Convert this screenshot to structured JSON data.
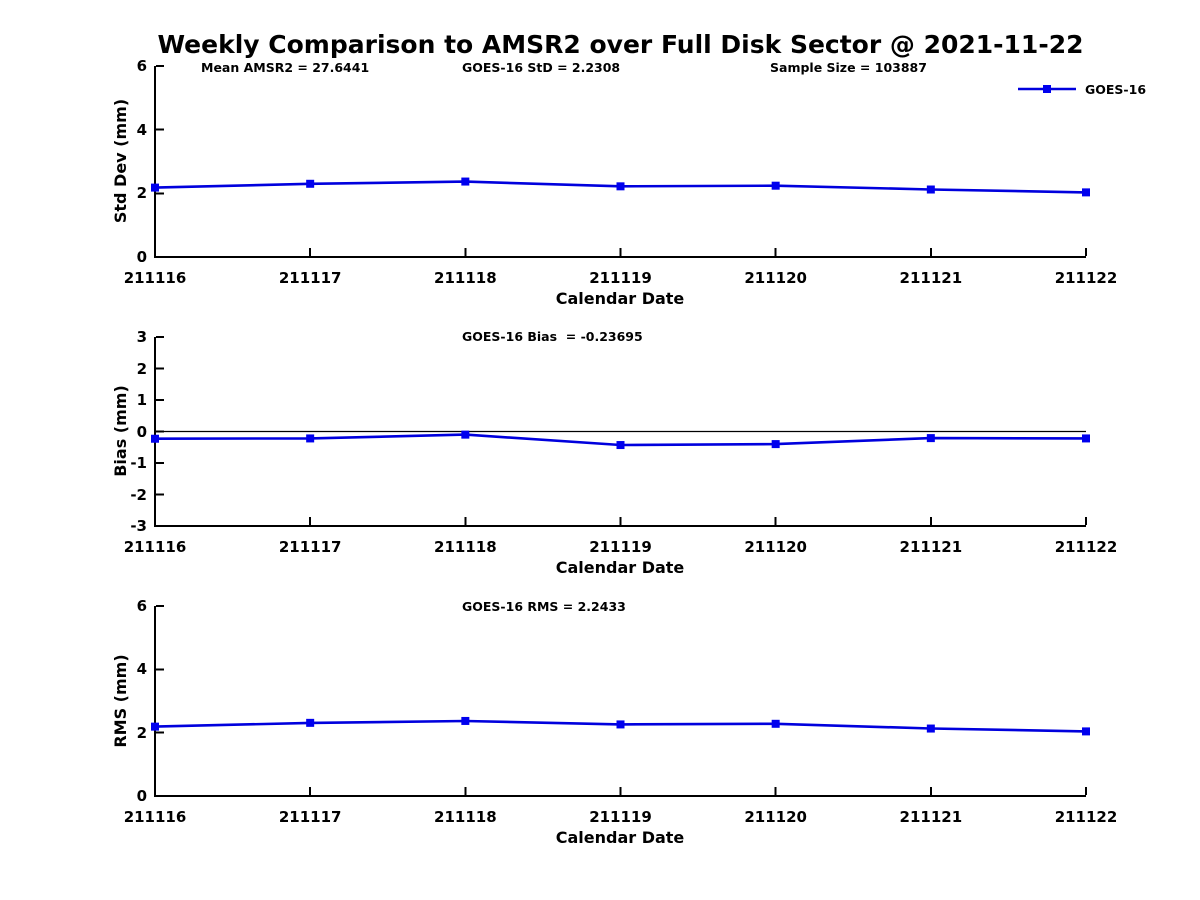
{
  "title": "Weekly Comparison to AMSR2 over Full Disk Sector @ 2021-11-22",
  "legend": {
    "label": "GOES-16"
  },
  "colors": {
    "line": "#0000DD",
    "marker": "#0000EE",
    "axis": "#000000",
    "zero_line": "#000000",
    "text": "#000000",
    "background": "#FFFFFF"
  },
  "x": {
    "label": "Calendar Date",
    "categories": [
      "211116",
      "211117",
      "211118",
      "211119",
      "211120",
      "211121",
      "211122"
    ]
  },
  "chart_data": [
    {
      "type": "line",
      "ylabel": "Std Dev (mm)",
      "ylim": [
        0,
        6
      ],
      "yticks": [
        6,
        4,
        2,
        0
      ],
      "grid": false,
      "legend_position": "top-right-outside",
      "annotations": [
        "Mean AMSR2 = 27.6441",
        "GOES-16 StD = 2.2308",
        "Sample Size = 103887"
      ],
      "series": [
        {
          "name": "GOES-16",
          "values": [
            2.18,
            2.3,
            2.37,
            2.22,
            2.24,
            2.12,
            2.03
          ]
        }
      ]
    },
    {
      "type": "line",
      "ylabel": "Bias (mm)",
      "ylim": [
        -3,
        3
      ],
      "yticks": [
        3,
        2,
        1,
        0,
        -1,
        -2,
        -3
      ],
      "grid": false,
      "zero_line": true,
      "annotations": [
        "GOES-16 Bias  = -0.23695"
      ],
      "series": [
        {
          "name": "GOES-16",
          "values": [
            -0.23,
            -0.22,
            -0.1,
            -0.43,
            -0.4,
            -0.21,
            -0.22
          ]
        }
      ]
    },
    {
      "type": "line",
      "ylabel": "RMS (mm)",
      "ylim": [
        0,
        6
      ],
      "yticks": [
        6,
        4,
        2,
        0
      ],
      "grid": false,
      "annotations": [
        "GOES-16 RMS = 2.2433"
      ],
      "series": [
        {
          "name": "GOES-16",
          "values": [
            2.19,
            2.31,
            2.37,
            2.26,
            2.28,
            2.13,
            2.04
          ]
        }
      ]
    }
  ]
}
